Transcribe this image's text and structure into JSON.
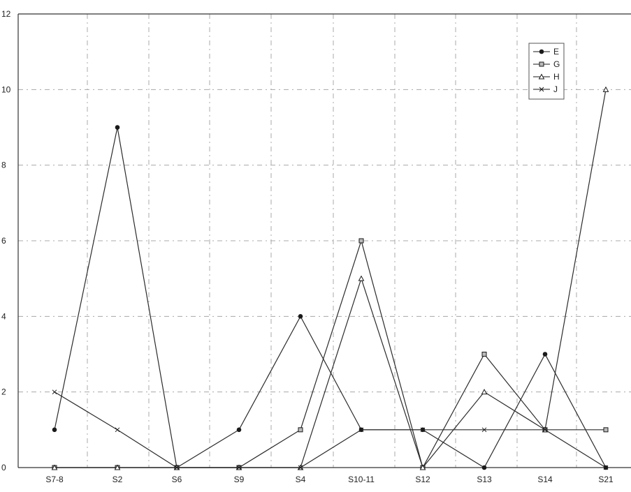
{
  "chart_data": {
    "type": "line",
    "title": "",
    "xlabel": "",
    "ylabel": "",
    "categories": [
      "S7-8",
      "S2",
      "S6",
      "S9",
      "S4",
      "S10-11",
      "S12",
      "S13",
      "S14",
      "S21"
    ],
    "ylim": [
      0,
      12
    ],
    "yticks": [
      "0",
      "2",
      "4",
      "6",
      "8",
      "10",
      "12"
    ],
    "grid": true,
    "legend_position": "top-right",
    "series": [
      {
        "name": "E",
        "marker": "filled-circle",
        "values": [
          1,
          9,
          0,
          1,
          4,
          1,
          1,
          0,
          3,
          0
        ]
      },
      {
        "name": "G",
        "marker": "square",
        "values": [
          0,
          0,
          0,
          0,
          1,
          6,
          0,
          3,
          1,
          1
        ]
      },
      {
        "name": "H",
        "marker": "open-triangle",
        "values": [
          0,
          0,
          0,
          0,
          0,
          5,
          0,
          2,
          1,
          10
        ]
      },
      {
        "name": "J",
        "marker": "cross",
        "values": [
          2,
          1,
          0,
          0,
          0,
          1,
          1,
          1,
          1,
          0
        ]
      }
    ],
    "colors": {
      "line": "#2b2b2b",
      "grid": "#a8a8a8",
      "axis": "#333333"
    }
  }
}
